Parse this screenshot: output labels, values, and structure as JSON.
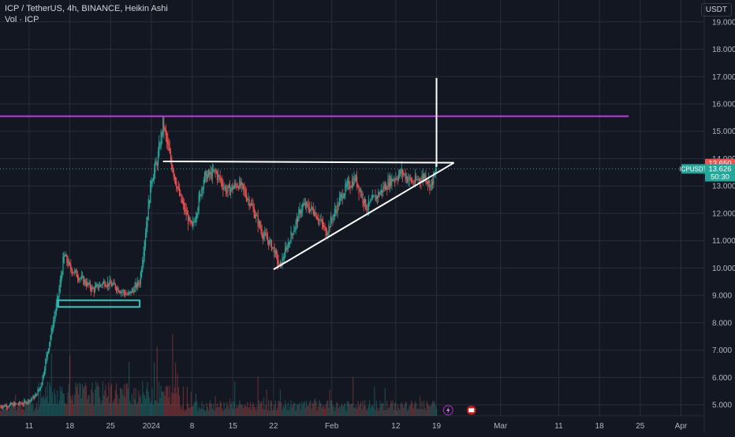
{
  "header": {
    "title_line": "ICP / TetherUS, 4h, BINANCE, Heikin Ashi",
    "volume_line": "Vol · ICP"
  },
  "currency_button": "USDT",
  "colors": {
    "background": "#131722",
    "up": "#26a69a",
    "down": "#ef5350",
    "resistance": "#b83ee0",
    "box": "#3cc3c0",
    "drawing": "#ffffff",
    "grid": "#2a2e39"
  },
  "chart_data": {
    "type": "candlestick",
    "chart_style": "Heikin Ashi",
    "symbol": "ICPUSDT",
    "timeframe": "4h",
    "exchange": "BINANCE",
    "y_axis": {
      "ylim": [
        4.6,
        19.8
      ],
      "ticks": [
        "19.000",
        "18.000",
        "17.000",
        "16.000",
        "15.000",
        "14.000",
        "13.000",
        "12.000",
        "11.000",
        "10.000",
        "9.000",
        "8.000",
        "7.000",
        "6.000",
        "5.000"
      ]
    },
    "x_axis": {
      "range": [
        "2023-12-06",
        "2024-04-05"
      ],
      "ticks": [
        {
          "date": "2023-12-11",
          "label": "11"
        },
        {
          "date": "2023-12-18",
          "label": "18"
        },
        {
          "date": "2023-12-25",
          "label": "25"
        },
        {
          "date": "2024-01-01",
          "label": "2024"
        },
        {
          "date": "2024-01-08",
          "label": "8"
        },
        {
          "date": "2024-01-15",
          "label": "15"
        },
        {
          "date": "2024-01-22",
          "label": "22"
        },
        {
          "date": "2024-02-01",
          "label": "Feb"
        },
        {
          "date": "2024-02-12",
          "label": "12"
        },
        {
          "date": "2024-02-19",
          "label": "19"
        },
        {
          "date": "2024-03-01",
          "label": "Mar"
        },
        {
          "date": "2024-03-11",
          "label": "11"
        },
        {
          "date": "2024-03-18",
          "label": "18"
        },
        {
          "date": "2024-03-25",
          "label": "25"
        },
        {
          "date": "2024-04-01",
          "label": "Apr"
        }
      ]
    },
    "price_path": [
      [
        "2023-12-06",
        4.95
      ],
      [
        "2023-12-10",
        5.05
      ],
      [
        "2023-12-12",
        5.3
      ],
      [
        "2023-12-13",
        5.7
      ],
      [
        "2023-12-14",
        6.8
      ],
      [
        "2023-12-15",
        7.9
      ],
      [
        "2023-12-16",
        9.0
      ],
      [
        "2023-12-17",
        10.5
      ],
      [
        "2023-12-18",
        10.0
      ],
      [
        "2023-12-20",
        9.6
      ],
      [
        "2023-12-22",
        9.2
      ],
      [
        "2023-12-24",
        9.5
      ],
      [
        "2023-12-26",
        9.3
      ],
      [
        "2023-12-28",
        9.0
      ],
      [
        "2023-12-30",
        9.5
      ],
      [
        "2024-01-01",
        13.3
      ],
      [
        "2024-01-02",
        13.9
      ],
      [
        "2024-01-03",
        15.3
      ],
      [
        "2024-01-04",
        14.2
      ],
      [
        "2024-01-06",
        12.5
      ],
      [
        "2024-01-08",
        11.4
      ],
      [
        "2024-01-10",
        13.3
      ],
      [
        "2024-01-12",
        13.5
      ],
      [
        "2024-01-14",
        12.8
      ],
      [
        "2024-01-16",
        13.1
      ],
      [
        "2024-01-18",
        12.4
      ],
      [
        "2024-01-20",
        11.3
      ],
      [
        "2024-01-22",
        10.7
      ],
      [
        "2024-01-23",
        10.0
      ],
      [
        "2024-01-25",
        11.2
      ],
      [
        "2024-01-27",
        12.3
      ],
      [
        "2024-01-29",
        12.1
      ],
      [
        "2024-01-31",
        11.3
      ],
      [
        "2024-02-03",
        12.8
      ],
      [
        "2024-02-05",
        13.3
      ],
      [
        "2024-02-07",
        12.2
      ],
      [
        "2024-02-09",
        12.7
      ],
      [
        "2024-02-11",
        13.2
      ],
      [
        "2024-02-13",
        13.5
      ],
      [
        "2024-02-15",
        13.1
      ],
      [
        "2024-02-17",
        13.4
      ],
      [
        "2024-02-18",
        13.0
      ],
      [
        "2024-02-19",
        13.63
      ]
    ],
    "volume_max": 1,
    "horizontal_lines": [
      {
        "name": "resistance",
        "y": 15.55,
        "x_start": "2023-12-06",
        "x_end": "2024-03-23"
      }
    ],
    "trend_lines": [
      {
        "name": "triangle-top",
        "points": [
          [
            "2024-01-03",
            13.9
          ],
          [
            "2024-02-22",
            13.85
          ]
        ]
      },
      {
        "name": "triangle-bottom",
        "points": [
          [
            "2024-01-22",
            9.95
          ],
          [
            "2024-02-22",
            13.85
          ]
        ]
      },
      {
        "name": "breakout-target",
        "points": [
          [
            "2024-02-19",
            13.7
          ],
          [
            "2024-02-19",
            16.95
          ]
        ]
      }
    ],
    "boxes": [
      {
        "name": "support-zone",
        "x0": "2023-12-16",
        "x1": "2023-12-30",
        "y0": 8.58,
        "y1": 8.82
      }
    ],
    "price_tags": [
      {
        "label": "13.650",
        "value": 13.65,
        "color": "#ef5350"
      },
      {
        "label": "ICPUSDT",
        "value_label": "13.626",
        "countdown": "50:30",
        "value": 13.626,
        "color": "#26a69a"
      }
    ],
    "icons_on_volume": [
      "lightning-icon",
      "flag-icon"
    ]
  }
}
